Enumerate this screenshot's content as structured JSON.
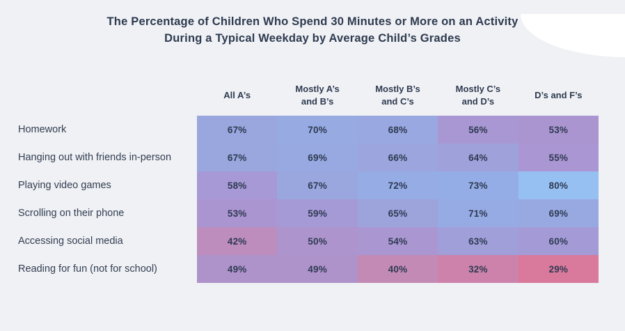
{
  "title": {
    "line1": "The Percentage of Children Who Spend 30 Minutes or More on an Activity",
    "line2": "During a Typical Weekday by Average Child’s Grades"
  },
  "colors": {
    "background": "#eff1f4",
    "corner_decoration": "#ffffff",
    "title_text": "#2e3a50",
    "cell_text": "#2e3a52",
    "scale_low": "#d9799c",
    "scale_mid": "#ad93cc",
    "scale_high": "#97c0f2"
  },
  "chart_data": {
    "type": "heatmap",
    "title": "The Percentage of Children Who Spend 30 Minutes or More on an Activity During a Typical Weekday by Average Child’s Grades",
    "columns": [
      "All A’s",
      "Mostly A’s and B’s",
      "Mostly B’s and C’s",
      "Mostly C’s and D’s",
      "D’s and F’s"
    ],
    "rows": [
      "Homework",
      "Hanging out with friends in-person",
      "Playing video games",
      "Scrolling on their phone",
      "Accessing social media",
      "Reading for fun (not for school)"
    ],
    "values": [
      [
        67,
        70,
        68,
        56,
        53
      ],
      [
        67,
        69,
        66,
        64,
        55
      ],
      [
        58,
        67,
        72,
        73,
        80
      ],
      [
        53,
        59,
        65,
        71,
        69
      ],
      [
        42,
        50,
        54,
        63,
        60
      ],
      [
        49,
        49,
        40,
        32,
        29
      ]
    ],
    "value_suffix": "%",
    "cell_colors": [
      [
        "#9aa7df",
        "#97aae2",
        "#99a8e0",
        "#a997d3",
        "#ab95d0"
      ],
      [
        "#9aa7df",
        "#98a9e1",
        "#9ca5dd",
        "#9fa1da",
        "#aa96d2"
      ],
      [
        "#a699d5",
        "#9aa7df",
        "#95ace5",
        "#94ade6",
        "#97c0f2"
      ],
      [
        "#ab95d0",
        "#a59ad5",
        "#9da3db",
        "#96abe3",
        "#98a9e1"
      ],
      [
        "#bd8dbd",
        "#ad94cd",
        "#aa96d1",
        "#a09fd9",
        "#a49bd6"
      ],
      [
        "#ae93cb",
        "#ae93cb",
        "#c38ab6",
        "#cc82ab",
        "#d9799c"
      ]
    ],
    "legend": "none",
    "grid": "flush cells, no gaps, color encodes value: pink/red = low, purple = mid, blue = high"
  }
}
